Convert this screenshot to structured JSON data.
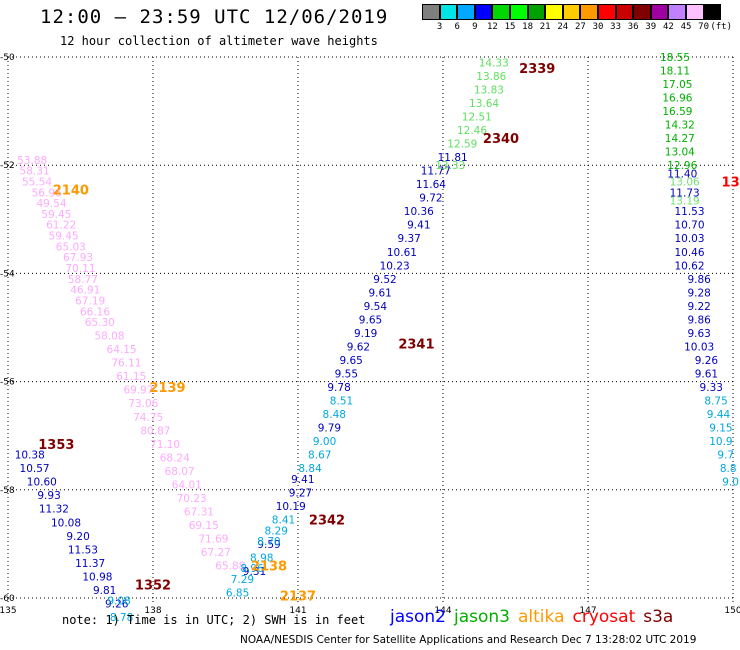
{
  "title": "12:00 — 23:59 UTC 12/06/2019",
  "subtitle": "12 hour collection of altimeter wave heights",
  "colorbar": {
    "colors": [
      "#7f7f7f",
      "#00e5e5",
      "#00a8ff",
      "#0000ff",
      "#00d600",
      "#00ff00",
      "#00a000",
      "#ffff00",
      "#ffcc00",
      "#ff9900",
      "#ff0000",
      "#c80000",
      "#800000",
      "#a000a0",
      "#c080ff",
      "#ffc0ff",
      "#000000"
    ],
    "labels": [
      "3",
      "6",
      "9",
      "12",
      "15",
      "18",
      "21",
      "24",
      "27",
      "30",
      "33",
      "36",
      "39",
      "42",
      "45",
      "70",
      "(ft)"
    ]
  },
  "map": {
    "lon_ticks": [
      "135",
      "138",
      "141",
      "144",
      "147",
      "150"
    ],
    "lat_ticks": [
      "-50",
      "-52",
      "-54",
      "-56",
      "-58",
      "-60"
    ]
  },
  "chart_data": {
    "type": "scatter",
    "title": "12:00 — 23:59 UTC 12/06/2019",
    "xlim": [
      135,
      150
    ],
    "ylim": [
      -60,
      -50
    ],
    "grid": true,
    "passes": [
      {
        "label": "2140",
        "x": 136.3,
        "y": -52.45,
        "color": "#ff9900"
      },
      {
        "label": "2139",
        "x": 138.3,
        "y": -56.1,
        "color": "#ff9900"
      },
      {
        "label": "2138",
        "x": 140.4,
        "y": -59.4,
        "color": "#ff9900"
      },
      {
        "label": "2137",
        "x": 141.0,
        "y": -59.95,
        "color": "#ff9900"
      },
      {
        "label": "1353",
        "x": 136.0,
        "y": -57.15,
        "color": "#800000"
      },
      {
        "label": "1352",
        "x": 138.0,
        "y": -59.75,
        "color": "#800000"
      },
      {
        "label": "2339",
        "x": 145.95,
        "y": -50.2,
        "color": "#800000"
      },
      {
        "label": "2340",
        "x": 145.2,
        "y": -51.5,
        "color": "#800000"
      },
      {
        "label": "2341",
        "x": 143.45,
        "y": -55.3,
        "color": "#800000"
      },
      {
        "label": "2342",
        "x": 141.6,
        "y": -58.55,
        "color": "#800000"
      },
      {
        "label": "13",
        "x": 149.95,
        "y": -52.3,
        "color": "#ff0000"
      }
    ],
    "series": [
      {
        "satellite": "cryosat-left",
        "color": "#ffaaff",
        "points": [
          {
            "x": 135.5,
            "y": -51.9,
            "v": "53.88"
          },
          {
            "x": 135.55,
            "y": -52.1,
            "v": "58.31"
          },
          {
            "x": 135.6,
            "y": -52.3,
            "v": "55.54"
          },
          {
            "x": 135.8,
            "y": -52.5,
            "v": "56.96"
          },
          {
            "x": 135.9,
            "y": -52.7,
            "v": "49.54"
          },
          {
            "x": 136.0,
            "y": -52.9,
            "v": "59.45"
          },
          {
            "x": 136.1,
            "y": -53.1,
            "v": "61.22"
          },
          {
            "x": 136.15,
            "y": -53.3,
            "v": "59.45"
          },
          {
            "x": 136.3,
            "y": -53.5,
            "v": "65.03"
          },
          {
            "x": 136.45,
            "y": -53.7,
            "v": "67.93"
          },
          {
            "x": 136.5,
            "y": -53.9,
            "v": "70.11"
          },
          {
            "x": 136.55,
            "y": -54.1,
            "v": "58.77"
          },
          {
            "x": 136.6,
            "y": -54.3,
            "v": "46.91"
          },
          {
            "x": 136.7,
            "y": -54.5,
            "v": "67.19"
          },
          {
            "x": 136.8,
            "y": -54.7,
            "v": "66.16"
          },
          {
            "x": 136.9,
            "y": -54.9,
            "v": "65.30"
          },
          {
            "x": 137.1,
            "y": -55.15,
            "v": "58.08"
          },
          {
            "x": 137.35,
            "y": -55.4,
            "v": "64.15"
          },
          {
            "x": 137.45,
            "y": -55.65,
            "v": "76.11"
          },
          {
            "x": 137.55,
            "y": -55.9,
            "v": "61.15"
          },
          {
            "x": 137.7,
            "y": -56.15,
            "v": "69.97"
          },
          {
            "x": 137.8,
            "y": -56.4,
            "v": "73.06"
          },
          {
            "x": 137.9,
            "y": -56.65,
            "v": "74.75"
          },
          {
            "x": 138.05,
            "y": -56.9,
            "v": "80.87"
          },
          {
            "x": 138.25,
            "y": -57.15,
            "v": "71.10"
          },
          {
            "x": 138.45,
            "y": -57.4,
            "v": "68.24"
          },
          {
            "x": 138.55,
            "y": -57.65,
            "v": "68.07"
          },
          {
            "x": 138.7,
            "y": -57.9,
            "v": "64.01"
          },
          {
            "x": 138.8,
            "y": -58.15,
            "v": "70.23"
          },
          {
            "x": 138.95,
            "y": -58.4,
            "v": "67.31"
          },
          {
            "x": 139.05,
            "y": -58.65,
            "v": "69.15"
          },
          {
            "x": 139.25,
            "y": -58.9,
            "v": "71.69"
          },
          {
            "x": 139.3,
            "y": -59.15,
            "v": "67.27"
          },
          {
            "x": 139.6,
            "y": -59.4,
            "v": "65.88"
          }
        ]
      },
      {
        "satellite": "jason2-left",
        "color": "#0000c0",
        "points": [
          {
            "x": 135.45,
            "y": -57.35,
            "v": "10.38"
          },
          {
            "x": 135.55,
            "y": -57.6,
            "v": "10.57"
          },
          {
            "x": 135.7,
            "y": -57.85,
            "v": "10.60"
          },
          {
            "x": 135.85,
            "y": -58.1,
            "v": "9.93"
          },
          {
            "x": 135.95,
            "y": -58.35,
            "v": "11.32"
          },
          {
            "x": 136.2,
            "y": -58.6,
            "v": "10.08"
          },
          {
            "x": 136.45,
            "y": -58.85,
            "v": "9.20"
          },
          {
            "x": 136.55,
            "y": -59.1,
            "v": "11.53"
          },
          {
            "x": 136.7,
            "y": -59.35,
            "v": "11.37"
          },
          {
            "x": 136.85,
            "y": -59.6,
            "v": "10.98"
          },
          {
            "x": 137.0,
            "y": -59.85,
            "v": "9.81"
          },
          {
            "x": 137.25,
            "y": -60.1,
            "v": "9.26"
          }
        ]
      },
      {
        "satellite": "altika-left",
        "color": "#00a8e0",
        "points": [
          {
            "x": 137.3,
            "y": -60.05,
            "v": "9.08"
          },
          {
            "x": 137.35,
            "y": -60.35,
            "v": "8.78"
          }
        ]
      },
      {
        "satellite": "jason2-mid",
        "color": "#0000c0",
        "points": [
          {
            "x": 144.2,
            "y": -51.85,
            "v": "11.81"
          },
          {
            "x": 143.85,
            "y": -52.1,
            "v": "11.77"
          },
          {
            "x": 143.75,
            "y": -52.35,
            "v": "11.64"
          },
          {
            "x": 143.75,
            "y": -52.6,
            "v": "9.72"
          },
          {
            "x": 143.5,
            "y": -52.85,
            "v": "10.36"
          },
          {
            "x": 143.5,
            "y": -53.1,
            "v": "9.41"
          },
          {
            "x": 143.3,
            "y": -53.35,
            "v": "9.37"
          },
          {
            "x": 143.15,
            "y": -53.6,
            "v": "10.61"
          },
          {
            "x": 143.0,
            "y": -53.85,
            "v": "10.23"
          },
          {
            "x": 142.8,
            "y": -54.1,
            "v": "9.52"
          },
          {
            "x": 142.7,
            "y": -54.35,
            "v": "9.61"
          },
          {
            "x": 142.6,
            "y": -54.6,
            "v": "9.54"
          },
          {
            "x": 142.5,
            "y": -54.85,
            "v": "9.65"
          },
          {
            "x": 142.4,
            "y": -55.1,
            "v": "9.19"
          },
          {
            "x": 142.25,
            "y": -55.35,
            "v": "9.62"
          },
          {
            "x": 142.1,
            "y": -55.6,
            "v": "9.65"
          },
          {
            "x": 142.0,
            "y": -55.85,
            "v": "9.55"
          },
          {
            "x": 141.85,
            "y": -56.1,
            "v": "9.78"
          },
          {
            "x": 141.65,
            "y": -56.85,
            "v": "9.79"
          },
          {
            "x": 141.1,
            "y": -57.8,
            "v": "9.41"
          },
          {
            "x": 141.05,
            "y": -58.05,
            "v": "9.27"
          },
          {
            "x": 140.85,
            "y": -58.3,
            "v": "10.19"
          },
          {
            "x": 140.4,
            "y": -59.0,
            "v": "9.59"
          },
          {
            "x": 140.1,
            "y": -59.5,
            "v": "9.31"
          }
        ]
      },
      {
        "satellite": "altika-mid",
        "color": "#00a8e0",
        "points": [
          {
            "x": 141.9,
            "y": -56.35,
            "v": "8.51"
          },
          {
            "x": 141.75,
            "y": -56.6,
            "v": "8.48"
          },
          {
            "x": 141.55,
            "y": -57.1,
            "v": "9.00"
          },
          {
            "x": 141.45,
            "y": -57.35,
            "v": "8.67"
          },
          {
            "x": 141.25,
            "y": -57.6,
            "v": "8.84"
          },
          {
            "x": 140.7,
            "y": -58.55,
            "v": "8.41"
          },
          {
            "x": 140.55,
            "y": -58.75,
            "v": "8.29"
          },
          {
            "x": 140.4,
            "y": -58.95,
            "v": "8.70"
          },
          {
            "x": 140.25,
            "y": -59.25,
            "v": "8.98"
          },
          {
            "x": 140.05,
            "y": -59.45,
            "v": "8.96"
          },
          {
            "x": 139.85,
            "y": -59.65,
            "v": "7.29"
          },
          {
            "x": 139.75,
            "y": -59.9,
            "v": "6.85"
          }
        ]
      },
      {
        "satellite": "jason3-mid",
        "color": "#60e060",
        "points": [
          {
            "x": 145.05,
            "y": -50.1,
            "v": "14.33"
          },
          {
            "x": 145.0,
            "y": -50.35,
            "v": "13.86"
          },
          {
            "x": 144.95,
            "y": -50.6,
            "v": "13.83"
          },
          {
            "x": 144.85,
            "y": -50.85,
            "v": "13.64"
          },
          {
            "x": 144.7,
            "y": -51.1,
            "v": "12.51"
          },
          {
            "x": 144.6,
            "y": -51.35,
            "v": "12.46"
          },
          {
            "x": 144.4,
            "y": -51.6,
            "v": "12.59"
          },
          {
            "x": 144.15,
            "y": -52.0,
            "v": "13.33"
          }
        ]
      },
      {
        "satellite": "jason3-right",
        "color": "#00b000",
        "points": [
          {
            "x": 148.8,
            "y": -50.0,
            "v": "18.55"
          },
          {
            "x": 148.8,
            "y": -50.25,
            "v": "18.11"
          },
          {
            "x": 148.85,
            "y": -50.5,
            "v": "17.05"
          },
          {
            "x": 148.85,
            "y": -50.75,
            "v": "16.96"
          },
          {
            "x": 148.85,
            "y": -51.0,
            "v": "16.59"
          },
          {
            "x": 148.9,
            "y": -51.25,
            "v": "14.32"
          },
          {
            "x": 148.9,
            "y": -51.5,
            "v": "14.27"
          },
          {
            "x": 148.9,
            "y": -51.75,
            "v": "13.04"
          },
          {
            "x": 148.95,
            "y": -52.0,
            "v": "12.96"
          }
        ]
      },
      {
        "satellite": "jason3-right-light",
        "color": "#70e070",
        "points": [
          {
            "x": 149.0,
            "y": -52.3,
            "v": "13.06"
          },
          {
            "x": 149.0,
            "y": -52.65,
            "v": "13.19"
          }
        ]
      },
      {
        "satellite": "jason2-right",
        "color": "#0000c0",
        "points": [
          {
            "x": 148.95,
            "y": -52.15,
            "v": "11.40"
          },
          {
            "x": 149.0,
            "y": -52.5,
            "v": "11.73"
          },
          {
            "x": 149.1,
            "y": -52.85,
            "v": "11.53"
          },
          {
            "x": 149.1,
            "y": -53.1,
            "v": "10.70"
          },
          {
            "x": 149.1,
            "y": -53.35,
            "v": "10.03"
          },
          {
            "x": 149.1,
            "y": -53.6,
            "v": "10.46"
          },
          {
            "x": 149.1,
            "y": -53.85,
            "v": "10.62"
          },
          {
            "x": 149.3,
            "y": -54.1,
            "v": "9.86"
          },
          {
            "x": 149.3,
            "y": -54.35,
            "v": "9.28"
          },
          {
            "x": 149.3,
            "y": -54.6,
            "v": "9.22"
          },
          {
            "x": 149.3,
            "y": -54.85,
            "v": "9.86"
          },
          {
            "x": 149.3,
            "y": -55.1,
            "v": "9.63"
          },
          {
            "x": 149.3,
            "y": -55.35,
            "v": "10.03"
          },
          {
            "x": 149.45,
            "y": -55.6,
            "v": "9.26"
          },
          {
            "x": 149.45,
            "y": -55.85,
            "v": "9.61"
          },
          {
            "x": 149.55,
            "y": -56.1,
            "v": "9.33"
          }
        ]
      },
      {
        "satellite": "altika-right",
        "color": "#00a8e0",
        "points": [
          {
            "x": 149.65,
            "y": -56.35,
            "v": "8.75"
          },
          {
            "x": 149.7,
            "y": -56.6,
            "v": "9.44"
          },
          {
            "x": 149.75,
            "y": -56.85,
            "v": "9.15"
          },
          {
            "x": 149.75,
            "y": -57.1,
            "v": "10.9"
          },
          {
            "x": 149.85,
            "y": -57.35,
            "v": "9.7"
          },
          {
            "x": 149.9,
            "y": -57.6,
            "v": "8.8"
          },
          {
            "x": 149.95,
            "y": -57.85,
            "v": "9.0"
          }
        ]
      }
    ]
  },
  "note": "note: 1) Time is in UTC; 2) SWH is in feet",
  "legend": [
    {
      "name": "jason2",
      "color": "#0000ff"
    },
    {
      "name": "jason3",
      "color": "#00b000"
    },
    {
      "name": "altika",
      "color": "#ff9900"
    },
    {
      "name": "cryosat",
      "color": "#ff0000"
    },
    {
      "name": "s3a",
      "color": "#800000"
    }
  ],
  "credit": "NOAA/NESDIS Center for Satellite Applications and Research   Dec  7 13:28:02 UTC 2019"
}
